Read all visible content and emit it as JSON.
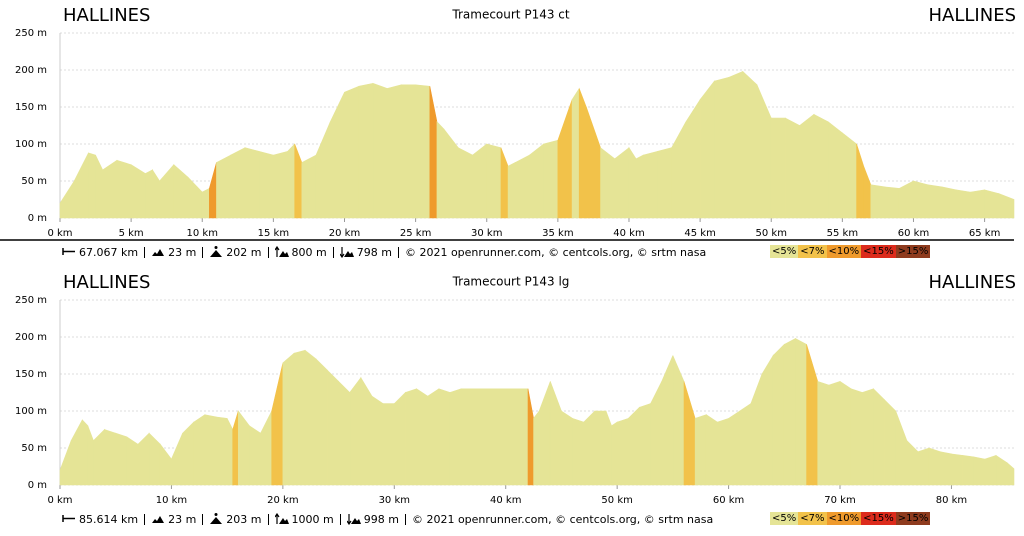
{
  "chart_data": [
    {
      "type": "area",
      "title": "Tramecourt P143 ct",
      "start_label": "HALLINES",
      "end_label": "HALLINES",
      "fill": "#e5e496",
      "x": [
        0,
        1,
        2,
        2.5,
        3,
        4,
        5,
        6,
        6.5,
        7,
        8,
        9,
        10,
        10.5,
        11,
        12,
        13,
        14,
        15,
        16,
        16.5,
        17,
        18,
        19,
        20,
        21,
        22,
        23,
        24,
        25,
        26,
        26.5,
        27,
        28,
        29,
        30,
        31,
        31.5,
        32,
        33,
        34,
        35,
        36,
        36.5,
        37,
        38,
        39,
        40,
        40.5,
        41,
        42,
        43,
        44,
        45,
        46,
        47,
        48,
        49,
        50,
        51,
        52,
        53,
        54,
        55,
        56,
        56.5,
        57,
        58,
        59,
        60,
        61,
        62,
        63,
        64,
        65,
        66,
        67.067
      ],
      "values": [
        20,
        50,
        88,
        85,
        65,
        78,
        72,
        60,
        65,
        50,
        72,
        55,
        35,
        40,
        75,
        85,
        95,
        90,
        85,
        90,
        100,
        75,
        85,
        130,
        170,
        178,
        182,
        175,
        180,
        180,
        178,
        130,
        120,
        95,
        85,
        100,
        95,
        70,
        75,
        85,
        100,
        105,
        160,
        175,
        150,
        95,
        80,
        95,
        80,
        85,
        90,
        95,
        130,
        160,
        185,
        190,
        198,
        180,
        135,
        135,
        125,
        140,
        130,
        115,
        100,
        70,
        45,
        42,
        40,
        50,
        45,
        42,
        38,
        35,
        38,
        33,
        25
      ],
      "xlim": [
        0,
        67.067
      ],
      "ylim": [
        0,
        250
      ],
      "xticks": [
        {
          "value": 0,
          "label": "0 km"
        },
        {
          "value": 5,
          "label": "5 km"
        },
        {
          "value": 10,
          "label": "10 km"
        },
        {
          "value": 15,
          "label": "15 km"
        },
        {
          "value": 20,
          "label": "20 km"
        },
        {
          "value": 25,
          "label": "25 km"
        },
        {
          "value": 30,
          "label": "30 km"
        },
        {
          "value": 35,
          "label": "35 km"
        },
        {
          "value": 40,
          "label": "40 km"
        },
        {
          "value": 45,
          "label": "45 km"
        },
        {
          "value": 50,
          "label": "50 km"
        },
        {
          "value": 55,
          "label": "55 km"
        },
        {
          "value": 60,
          "label": "60 km"
        },
        {
          "value": 65,
          "label": "65 km"
        }
      ],
      "yticks": [
        {
          "value": 0,
          "label": "0 m"
        },
        {
          "value": 50,
          "label": "50 m"
        },
        {
          "value": 100,
          "label": "100 m"
        },
        {
          "value": 150,
          "label": "150 m"
        },
        {
          "value": 200,
          "label": "200 m"
        },
        {
          "value": 250,
          "label": "250 m"
        }
      ],
      "grid": true,
      "stats": [
        "67.067 km",
        "23 m",
        "202 m",
        "800 m",
        "798 m"
      ],
      "credits": "© 2021 openrunner.com, © centcols.org, © srtm nasa",
      "slope_classes": [
        {
          "label": "<5%",
          "max": 5,
          "color": "#e5e496"
        },
        {
          "label": "<7%",
          "max": 7,
          "color": "#f2c24a"
        },
        {
          "label": "<10%",
          "max": 10,
          "color": "#ef9a2c"
        },
        {
          "label": "<15%",
          "max": 15,
          "color": "#dc2b1c"
        },
        {
          "label": ">15%",
          "min": 15,
          "color": "#8e3b1e"
        }
      ]
    },
    {
      "type": "area",
      "title": "Tramecourt P143 lg",
      "start_label": "HALLINES",
      "end_label": "HALLINES",
      "fill": "#e5e496",
      "x": [
        0,
        1,
        2,
        2.5,
        3,
        4,
        5,
        6,
        7,
        8,
        9,
        10,
        11,
        12,
        13,
        14,
        15,
        15.5,
        16,
        17,
        18,
        19,
        20,
        21,
        22,
        23,
        24,
        25,
        26,
        27,
        28,
        29,
        30,
        31,
        32,
        33,
        34,
        35,
        36,
        38,
        40,
        42,
        42.5,
        43,
        44,
        45,
        46,
        47,
        48,
        49,
        49.5,
        50,
        51,
        52,
        53,
        54,
        55,
        56,
        57,
        58,
        59,
        60,
        61,
        62,
        63,
        64,
        65,
        66,
        67,
        68,
        69,
        70,
        71,
        72,
        73,
        74,
        75,
        76,
        77,
        78,
        79,
        80,
        81,
        82,
        83,
        84,
        85,
        85.614
      ],
      "values": [
        20,
        60,
        88,
        80,
        60,
        75,
        70,
        65,
        55,
        70,
        55,
        35,
        70,
        85,
        95,
        92,
        90,
        75,
        100,
        80,
        70,
        100,
        165,
        178,
        182,
        170,
        155,
        140,
        125,
        145,
        120,
        110,
        110,
        125,
        130,
        120,
        130,
        125,
        130,
        130,
        130,
        130,
        90,
        100,
        140,
        100,
        90,
        85,
        100,
        100,
        80,
        85,
        90,
        105,
        110,
        140,
        175,
        140,
        90,
        95,
        85,
        90,
        100,
        110,
        150,
        175,
        190,
        198,
        190,
        140,
        135,
        140,
        130,
        125,
        130,
        115,
        100,
        60,
        45,
        50,
        45,
        42,
        40,
        38,
        35,
        40,
        30,
        22
      ],
      "xlim": [
        0,
        85.614
      ],
      "ylim": [
        0,
        250
      ],
      "xticks": [
        {
          "value": 0,
          "label": "0 km"
        },
        {
          "value": 10,
          "label": "10 km"
        },
        {
          "value": 20,
          "label": "20 km"
        },
        {
          "value": 30,
          "label": "30 km"
        },
        {
          "value": 40,
          "label": "40 km"
        },
        {
          "value": 50,
          "label": "50 km"
        },
        {
          "value": 60,
          "label": "60 km"
        },
        {
          "value": 70,
          "label": "70 km"
        },
        {
          "value": 80,
          "label": "80 km"
        }
      ],
      "yticks": [
        {
          "value": 0,
          "label": "0 m"
        },
        {
          "value": 50,
          "label": "50 m"
        },
        {
          "value": 100,
          "label": "100 m"
        },
        {
          "value": 150,
          "label": "150 m"
        },
        {
          "value": 200,
          "label": "200 m"
        },
        {
          "value": 250,
          "label": "250 m"
        }
      ],
      "grid": true,
      "stats": [
        "85.614 km",
        "23 m",
        "203 m",
        "1000 m",
        "998 m"
      ],
      "credits": "© 2021 openrunner.com, © centcols.org, © srtm nasa",
      "slope_classes": [
        {
          "label": "<5%",
          "max": 5,
          "color": "#e5e496"
        },
        {
          "label": "<7%",
          "max": 7,
          "color": "#f2c24a"
        },
        {
          "label": "<10%",
          "max": 10,
          "color": "#ef9a2c"
        },
        {
          "label": "<15%",
          "max": 15,
          "color": "#dc2b1c"
        },
        {
          "label": ">15%",
          "min": 15,
          "color": "#8e3b1e"
        }
      ]
    }
  ]
}
